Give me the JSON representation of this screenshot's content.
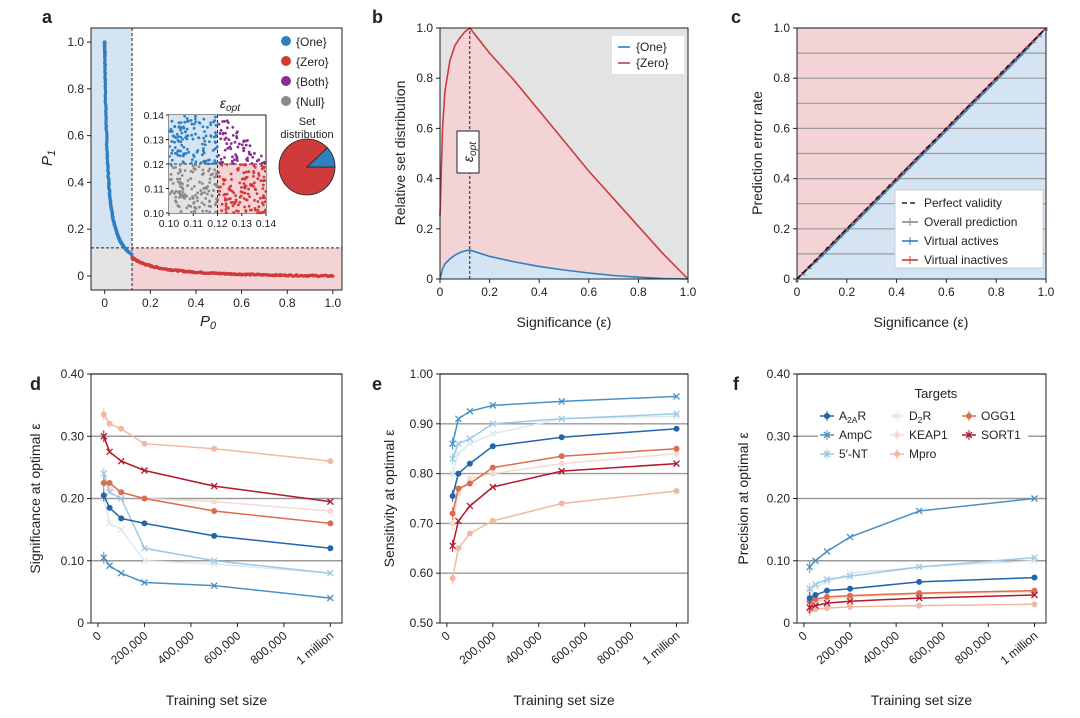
{
  "colors": {
    "one": "#2f7fc1",
    "zero": "#d03a3a",
    "both": "#8b2d8f",
    "null": "#8a8a8a",
    "blue_fill": "#d4e4f2",
    "red_fill": "#f3d3d6",
    "gray_fill": "#e3e3e3",
    "grid": "#9a9a9a"
  },
  "panels": {
    "a": {
      "letter": "a",
      "xlabel": "P",
      "xlabel_sub": "0",
      "ylabel": "P",
      "ylabel_sub": "1",
      "xticks": [
        "0",
        "0.2",
        "0.4",
        "0.6",
        "0.8",
        "1.0"
      ],
      "yticks": [
        "0",
        "0.2",
        "0.4",
        "0.6",
        "0.8",
        "1.0"
      ],
      "legend": [
        "{One}",
        "{Zero}",
        "{Both}",
        "{Null}"
      ],
      "inset_title": "ε",
      "inset_title_sub": "opt",
      "inset_xticks": [
        "0.10",
        "0.11",
        "0.12",
        "0.13",
        "0.14"
      ],
      "inset_yticks": [
        "0.10",
        "0.11",
        "0.12",
        "0.13",
        "0.14"
      ],
      "pie_title": "Set distribution"
    },
    "b": {
      "letter": "b",
      "xlabel": "Significance (ε)",
      "ylabel": "Relative set distribution",
      "xticks": [
        "0",
        "0.2",
        "0.4",
        "0.6",
        "0.8",
        "1.0"
      ],
      "yticks": [
        "0",
        "0.2",
        "0.4",
        "0.6",
        "0.8",
        "1.0"
      ],
      "legend": [
        "{One}",
        "{Zero}"
      ],
      "annot": "ε",
      "annot_sub": "opt"
    },
    "c": {
      "letter": "c",
      "xlabel": "Significance (ε)",
      "ylabel": "Prediction error rate",
      "xticks": [
        "0",
        "0.2",
        "0.4",
        "0.6",
        "0.8",
        "1.0"
      ],
      "yticks": [
        "0",
        "0.2",
        "0.4",
        "0.6",
        "0.8",
        "1.0"
      ],
      "legend": [
        "Perfect validity",
        "Overall prediction",
        "Virtual actives",
        "Virtual inactives"
      ]
    },
    "d": {
      "letter": "d",
      "ylabel": "Significance at optimal ε",
      "xlabel": "Training set size",
      "yticks": [
        "0",
        "0.10",
        "0.20",
        "0.30",
        "0.40"
      ]
    },
    "e": {
      "letter": "e",
      "ylabel": "Sensitivity at optimal ε",
      "xlabel": "Training set size",
      "yticks": [
        "0.50",
        "0.60",
        "0.70",
        "0.80",
        "0.90",
        "1.00"
      ]
    },
    "f": {
      "letter": "f",
      "ylabel": "Precision at optimal ε",
      "xlabel": "Training set size",
      "yticks": [
        "0",
        "0.10",
        "0.20",
        "0.30",
        "0.40"
      ],
      "legend_title": "Targets"
    },
    "size_xticks": [
      "0",
      "200,000",
      "400,000",
      "600,000",
      "800,000",
      "1 million"
    ]
  },
  "chart_data": [
    {
      "panel": "a",
      "type": "scatter",
      "xlabel": "P0",
      "ylabel": "P1",
      "xlim": [
        0,
        1
      ],
      "ylim": [
        0,
        1
      ],
      "epsilon_opt": 0.12,
      "series": [
        {
          "name": "{One}",
          "x": [
            0.0,
            0.005,
            0.01,
            0.02,
            0.03,
            0.05,
            0.07,
            0.09,
            0.11
          ],
          "y": [
            1.0,
            0.7,
            0.55,
            0.4,
            0.3,
            0.22,
            0.17,
            0.14,
            0.12
          ]
        },
        {
          "name": "{Zero}",
          "x": [
            0.12,
            0.15,
            0.2,
            0.3,
            0.4,
            0.5,
            0.6,
            0.7,
            0.8,
            0.9,
            1.0
          ],
          "y": [
            0.1,
            0.06,
            0.04,
            0.02,
            0.01,
            0.005,
            0.0,
            0.0,
            0.0,
            0.0,
            0.0
          ]
        }
      ],
      "pie": [
        {
          "name": "{Zero}",
          "value": 0.88
        },
        {
          "name": "{One}",
          "value": 0.12
        }
      ]
    },
    {
      "panel": "b",
      "type": "line",
      "xlabel": "Significance (ε)",
      "ylabel": "Relative set distribution",
      "xlim": [
        0,
        1
      ],
      "ylim": [
        0,
        1
      ],
      "x": [
        0,
        0.01,
        0.02,
        0.04,
        0.06,
        0.08,
        0.1,
        0.12,
        0.2,
        0.3,
        0.4,
        0.5,
        0.6,
        0.7,
        0.8,
        0.9,
        1.0
      ],
      "series": [
        {
          "name": "{One}",
          "values": [
            0,
            0.04,
            0.06,
            0.08,
            0.095,
            0.105,
            0.112,
            0.115,
            0.09,
            0.068,
            0.05,
            0.036,
            0.024,
            0.014,
            0.007,
            0.002,
            0
          ]
        },
        {
          "name": "{Zero}",
          "values": [
            0.25,
            0.6,
            0.75,
            0.87,
            0.93,
            0.96,
            0.985,
            1.0,
            0.9,
            0.79,
            0.67,
            0.55,
            0.43,
            0.32,
            0.21,
            0.1,
            0
          ]
        }
      ],
      "epsilon_opt": 0.12
    },
    {
      "panel": "c",
      "type": "line",
      "xlabel": "Significance (ε)",
      "ylabel": "Prediction error rate",
      "xlim": [
        0,
        1
      ],
      "ylim": [
        0,
        1
      ],
      "series": [
        {
          "name": "Perfect validity",
          "x": [
            0,
            1
          ],
          "values": [
            0,
            1
          ]
        },
        {
          "name": "Overall prediction",
          "x": [
            0,
            0.1,
            0.2,
            0.3,
            0.4,
            0.5,
            0.6,
            0.7,
            0.8,
            0.9,
            1.0
          ],
          "values": [
            0,
            0.1,
            0.2,
            0.3,
            0.4,
            0.5,
            0.6,
            0.7,
            0.8,
            0.9,
            1.0
          ]
        },
        {
          "name": "Virtual actives",
          "x": [
            0,
            0.1,
            0.2,
            0.3,
            0.4,
            0.5,
            0.6,
            0.7,
            0.8,
            0.9,
            1.0
          ],
          "values": [
            0,
            0.09,
            0.19,
            0.29,
            0.39,
            0.49,
            0.59,
            0.69,
            0.79,
            0.89,
            1.0
          ]
        },
        {
          "name": "Virtual inactives",
          "x": [
            0,
            0.1,
            0.2,
            0.3,
            0.4,
            0.5,
            0.6,
            0.7,
            0.8,
            0.9,
            1.0
          ],
          "values": [
            0,
            0.1,
            0.2,
            0.3,
            0.4,
            0.5,
            0.6,
            0.7,
            0.8,
            0.9,
            1.0
          ]
        }
      ]
    },
    {
      "panel": "d",
      "type": "line",
      "xlabel": "Training set size",
      "ylabel": "Significance at optimal ε",
      "xlim": [
        0,
        1000000
      ],
      "ylim": [
        0,
        0.4
      ],
      "x": [
        25000,
        50000,
        100000,
        200000,
        500000,
        1000000
      ],
      "series": [
        {
          "name": "A2AR",
          "values": [
            0.205,
            0.185,
            0.168,
            0.16,
            0.14,
            0.12
          ]
        },
        {
          "name": "AmpC",
          "values": [
            0.105,
            0.092,
            0.08,
            0.065,
            0.06,
            0.04
          ]
        },
        {
          "name": "5'-NT",
          "values": [
            0.24,
            0.21,
            0.2,
            0.12,
            0.1,
            0.08
          ]
        },
        {
          "name": "D2R",
          "values": [
            0.2,
            0.16,
            0.15,
            0.1,
            0.095,
            0.08
          ]
        },
        {
          "name": "KEAP1",
          "values": [
            0.225,
            0.215,
            0.21,
            0.2,
            0.195,
            0.18
          ]
        },
        {
          "name": "Mpro",
          "values": [
            0.335,
            0.32,
            0.312,
            0.288,
            0.28,
            0.26
          ]
        },
        {
          "name": "OGG1",
          "values": [
            0.225,
            0.225,
            0.21,
            0.2,
            0.18,
            0.16
          ]
        },
        {
          "name": "SORT1",
          "values": [
            0.3,
            0.275,
            0.26,
            0.245,
            0.22,
            0.195
          ]
        }
      ]
    },
    {
      "panel": "e",
      "type": "line",
      "xlabel": "Training set size",
      "ylabel": "Sensitivity at optimal ε",
      "xlim": [
        0,
        1000000
      ],
      "ylim": [
        0.5,
        1.0
      ],
      "x": [
        25000,
        50000,
        100000,
        200000,
        500000,
        1000000
      ],
      "series": [
        {
          "name": "A2AR",
          "values": [
            0.755,
            0.8,
            0.82,
            0.855,
            0.873,
            0.89
          ]
        },
        {
          "name": "AmpC",
          "values": [
            0.86,
            0.91,
            0.925,
            0.937,
            0.945,
            0.955
          ]
        },
        {
          "name": "5'-NT",
          "values": [
            0.83,
            0.86,
            0.87,
            0.9,
            0.91,
            0.92
          ]
        },
        {
          "name": "D2R",
          "values": [
            0.8,
            0.84,
            0.86,
            0.88,
            0.91,
            0.915
          ]
        },
        {
          "name": "KEAP1",
          "values": [
            0.7,
            0.76,
            0.79,
            0.8,
            0.82,
            0.84
          ]
        },
        {
          "name": "Mpro",
          "values": [
            0.59,
            0.65,
            0.68,
            0.705,
            0.74,
            0.765
          ]
        },
        {
          "name": "OGG1",
          "values": [
            0.72,
            0.77,
            0.78,
            0.812,
            0.835,
            0.85
          ]
        },
        {
          "name": "SORT1",
          "values": [
            0.655,
            0.705,
            0.735,
            0.773,
            0.805,
            0.82
          ]
        }
      ]
    },
    {
      "panel": "f",
      "type": "line",
      "xlabel": "Training set size",
      "ylabel": "Precision at optimal ε",
      "xlim": [
        0,
        1000000
      ],
      "ylim": [
        0,
        0.4
      ],
      "x": [
        25000,
        50000,
        100000,
        200000,
        500000,
        1000000
      ],
      "series": [
        {
          "name": "A2AR",
          "values": [
            0.04,
            0.045,
            0.052,
            0.055,
            0.066,
            0.073
          ]
        },
        {
          "name": "AmpC",
          "values": [
            0.09,
            0.1,
            0.115,
            0.138,
            0.18,
            0.2
          ]
        },
        {
          "name": "5'-NT",
          "values": [
            0.055,
            0.062,
            0.07,
            0.075,
            0.09,
            0.105
          ]
        },
        {
          "name": "D2R",
          "values": [
            0.05,
            0.058,
            0.066,
            0.08,
            0.09,
            0.1
          ]
        },
        {
          "name": "KEAP1",
          "values": [
            0.03,
            0.035,
            0.038,
            0.042,
            0.046,
            0.05
          ]
        },
        {
          "name": "Mpro",
          "values": [
            0.02,
            0.022,
            0.024,
            0.026,
            0.028,
            0.03
          ]
        },
        {
          "name": "OGG1",
          "values": [
            0.035,
            0.038,
            0.042,
            0.044,
            0.048,
            0.052
          ]
        },
        {
          "name": "SORT1",
          "values": [
            0.025,
            0.028,
            0.032,
            0.035,
            0.04,
            0.045
          ]
        }
      ]
    }
  ],
  "target_legend": [
    {
      "name": "A",
      "sub": "2A",
      "suffix": "R",
      "color": "#2166ac"
    },
    {
      "name": "AmpC",
      "sub": "",
      "suffix": "",
      "color": "#4a90c4"
    },
    {
      "name": "5′-NT",
      "sub": "",
      "suffix": "",
      "color": "#9cc9e6"
    },
    {
      "name": "D",
      "sub": "2",
      "suffix": "R",
      "color": "#dbe8f0"
    },
    {
      "name": "KEAP1",
      "sub": "",
      "suffix": "",
      "color": "#f6dcd0"
    },
    {
      "name": "Mpro",
      "sub": "",
      "suffix": "",
      "color": "#f2b8a0"
    },
    {
      "name": "OGG1",
      "sub": "",
      "suffix": "",
      "color": "#dd6b4e"
    },
    {
      "name": "SORT1",
      "sub": "",
      "suffix": "",
      "color": "#b2182b"
    }
  ]
}
